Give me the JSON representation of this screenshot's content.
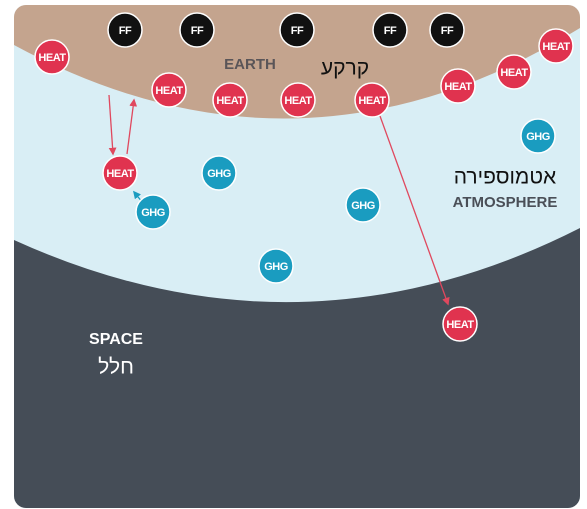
{
  "labels": {
    "earth": "EARTH",
    "earth_he": "קרקע",
    "atmosphere_he": "אטמוספירה",
    "atmosphere": "ATMOSPHERE",
    "space": "SPACE",
    "space_he": "חלל"
  },
  "nodes": [
    {
      "label": "FF"
    },
    {
      "label": "FF"
    },
    {
      "label": "FF"
    },
    {
      "label": "FF"
    },
    {
      "label": "FF"
    },
    {
      "label": "HEAT"
    },
    {
      "label": "HEAT"
    },
    {
      "label": "HEAT"
    },
    {
      "label": "HEAT"
    },
    {
      "label": "HEAT"
    },
    {
      "label": "HEAT"
    },
    {
      "label": "HEAT"
    },
    {
      "label": "HEAT"
    },
    {
      "label": "HEAT"
    },
    {
      "label": "HEAT"
    },
    {
      "label": "GHG"
    },
    {
      "label": "GHG"
    },
    {
      "label": "GHG"
    },
    {
      "label": "GHG"
    },
    {
      "label": "GHG"
    }
  ]
}
